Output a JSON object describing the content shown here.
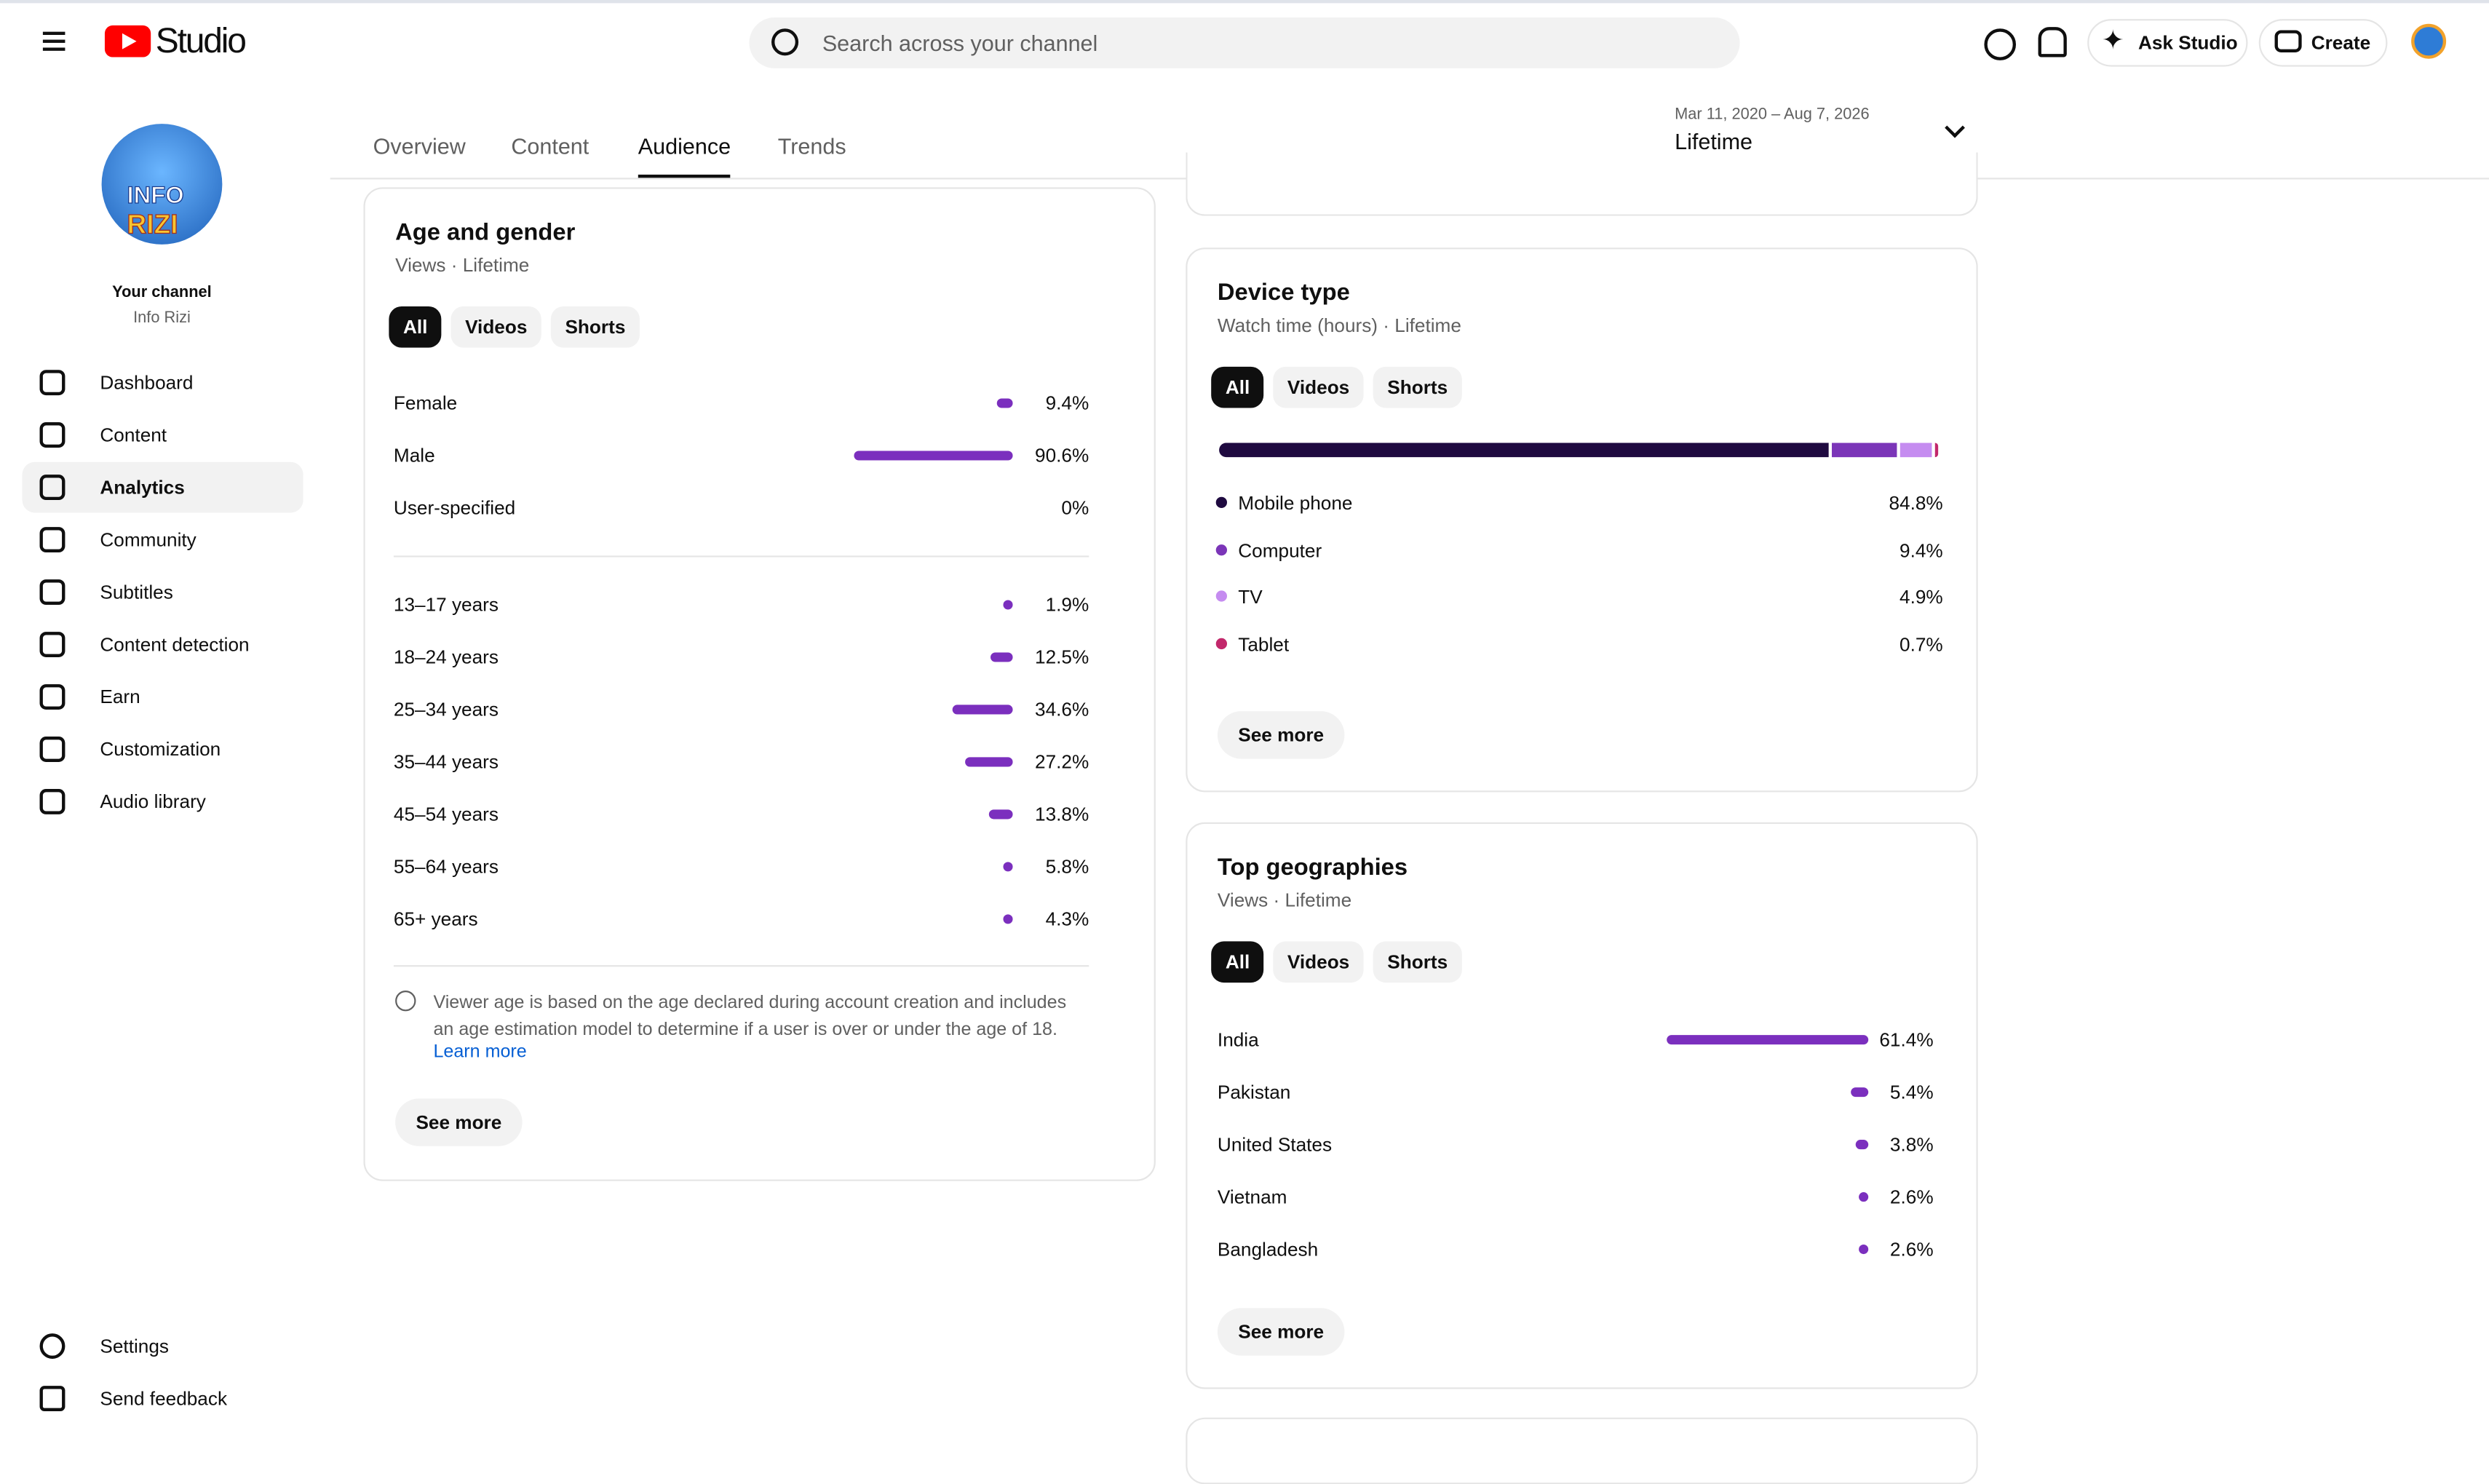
{
  "header": {
    "logo_text": "Studio",
    "search_placeholder": "Search across your channel",
    "ask": "Ask Studio",
    "create": "Create"
  },
  "sidebar": {
    "avatar_text": [
      "INFO",
      "RIZI"
    ],
    "channel_label": "Your channel",
    "channel_name": "Info Rizi",
    "nav": [
      "Dashboard",
      "Content",
      "Analytics",
      "Community",
      "Subtitles",
      "Content detection",
      "Earn",
      "Customization",
      "Audio library"
    ],
    "active": 2,
    "bottom": [
      "Settings",
      "Send feedback"
    ]
  },
  "tabs": {
    "items": [
      "Overview",
      "Content",
      "Audience",
      "Trends"
    ],
    "active": 2
  },
  "date_range": {
    "dates": "Mar 11, 2020 – Aug 7, 2026",
    "label": "Lifetime"
  },
  "age_gender": {
    "title": "Age and gender",
    "subtitle": "Views · Lifetime",
    "filters": [
      "All",
      "Videos",
      "Shorts"
    ],
    "gender": [
      {
        "label": "Female",
        "value": 9.4,
        "value_label": "9.4%"
      },
      {
        "label": "Male",
        "value": 90.6,
        "value_label": "90.6%"
      },
      {
        "label": "User-specified",
        "value": 0,
        "value_label": "0%"
      }
    ],
    "age": [
      {
        "label": "13–17 years",
        "value": 1.9,
        "value_label": "1.9%"
      },
      {
        "label": "18–24 years",
        "value": 12.5,
        "value_label": "12.5%"
      },
      {
        "label": "25–34 years",
        "value": 34.6,
        "value_label": "34.6%"
      },
      {
        "label": "35–44 years",
        "value": 27.2,
        "value_label": "27.2%"
      },
      {
        "label": "45–54 years",
        "value": 13.8,
        "value_label": "13.8%"
      },
      {
        "label": "55–64 years",
        "value": 5.8,
        "value_label": "5.8%"
      },
      {
        "label": "65+ years",
        "value": 4.3,
        "value_label": "4.3%"
      }
    ],
    "note": "Viewer age is based on the age declared during account creation and includes an age estimation model to determine if a user is over or under the age of 18.",
    "learn_more": "Learn more",
    "see_more": "See more"
  },
  "device": {
    "title": "Device type",
    "subtitle": "Watch time (hours) · Lifetime",
    "filters": [
      "All",
      "Videos",
      "Shorts"
    ],
    "rows": [
      {
        "label": "Mobile phone",
        "value": 84.8,
        "value_label": "84.8%",
        "color": "#1f0a40"
      },
      {
        "label": "Computer",
        "value": 9.4,
        "value_label": "9.4%",
        "color": "#7b35b8"
      },
      {
        "label": "TV",
        "value": 4.9,
        "value_label": "4.9%",
        "color": "#c58cf0"
      },
      {
        "label": "Tablet",
        "value": 0.7,
        "value_label": "0.7%",
        "color": "#c2286b"
      }
    ],
    "see_more": "See more"
  },
  "geographies": {
    "title": "Top geographies",
    "subtitle": "Views · Lifetime",
    "filters": [
      "All",
      "Videos",
      "Shorts"
    ],
    "rows": [
      {
        "label": "India",
        "value": 61.4,
        "value_label": "61.4%"
      },
      {
        "label": "Pakistan",
        "value": 5.4,
        "value_label": "5.4%"
      },
      {
        "label": "United States",
        "value": 3.8,
        "value_label": "3.8%"
      },
      {
        "label": "Vietnam",
        "value": 2.6,
        "value_label": "2.6%"
      },
      {
        "label": "Bangladesh",
        "value": 2.6,
        "value_label": "2.6%"
      }
    ],
    "see_more": "See more"
  }
}
